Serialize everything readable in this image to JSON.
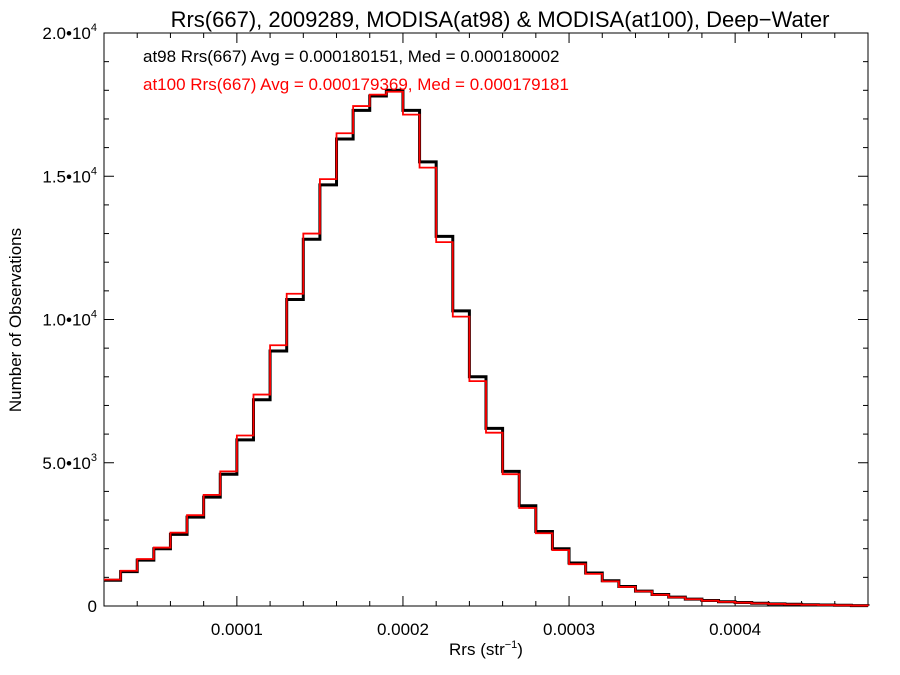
{
  "chart_data": {
    "type": "histogram",
    "title": "Rrs(667), 2009289, MODISA(at98) & MODISA(at100), Deep−Water",
    "xlabel": "Rrs (str",
    "xlabel_sup": "−1",
    "xlabel_close": ")",
    "ylabel": "Number of Observations",
    "xlim": [
      2e-05,
      0.00048
    ],
    "ylim": [
      0,
      20000
    ],
    "x_ticks": [
      {
        "value": 0.0001,
        "label": "0.0001"
      },
      {
        "value": 0.0002,
        "label": "0.0002"
      },
      {
        "value": 0.0003,
        "label": "0.0003"
      },
      {
        "value": 0.0004,
        "label": "0.0004"
      }
    ],
    "y_ticks": [
      {
        "value": 0,
        "label": "0",
        "sup": ""
      },
      {
        "value": 5000,
        "label": "5.0•10",
        "sup": "3"
      },
      {
        "value": 10000,
        "label": "1.0•10",
        "sup": "4"
      },
      {
        "value": 15000,
        "label": "1.5•10",
        "sup": "4"
      },
      {
        "value": 20000,
        "label": "2.0•10",
        "sup": "4"
      }
    ],
    "legend": [
      {
        "text": "at98 Rrs(667) Avg = 0.000180151, Med = 0.000180002",
        "color": "#000000"
      },
      {
        "text": "at100 Rrs(667) Avg = 0.000179369, Med = 0.000179181",
        "color": "#ff0000"
      }
    ],
    "series": [
      {
        "name": "at98",
        "color": "#000000",
        "x": [
          2e-05,
          3e-05,
          4e-05,
          5e-05,
          6e-05,
          7e-05,
          8e-05,
          9e-05,
          0.0001,
          0.00011,
          0.00012,
          0.00013,
          0.00014,
          0.00015,
          0.00016,
          0.00017,
          0.00018,
          0.00019,
          0.0002,
          0.00021,
          0.00022,
          0.00023,
          0.00024,
          0.00025,
          0.00026,
          0.00027,
          0.00028,
          0.00029,
          0.0003,
          0.00031,
          0.00032,
          0.00033,
          0.00034,
          0.00035,
          0.00036,
          0.00037,
          0.00038,
          0.00039,
          0.0004,
          0.00041,
          0.00042,
          0.00043,
          0.00044,
          0.00045,
          0.00046,
          0.00047,
          0.00048
        ],
        "y": [
          900,
          1200,
          1600,
          2000,
          2500,
          3100,
          3800,
          4600,
          5800,
          7200,
          8900,
          10700,
          12800,
          14700,
          16300,
          17300,
          17800,
          18000,
          17300,
          15500,
          12900,
          10300,
          8000,
          6200,
          4700,
          3500,
          2600,
          2000,
          1500,
          1150,
          880,
          680,
          520,
          400,
          310,
          240,
          190,
          150,
          120,
          95,
          75,
          60,
          45,
          35,
          25,
          15,
          10
        ]
      },
      {
        "name": "at100",
        "color": "#ff0000",
        "x": [
          2e-05,
          3e-05,
          4e-05,
          5e-05,
          6e-05,
          7e-05,
          8e-05,
          9e-05,
          0.0001,
          0.00011,
          0.00012,
          0.00013,
          0.00014,
          0.00015,
          0.00016,
          0.00017,
          0.00018,
          0.00019,
          0.0002,
          0.00021,
          0.00022,
          0.00023,
          0.00024,
          0.00025,
          0.00026,
          0.00027,
          0.00028,
          0.00029,
          0.0003,
          0.00031,
          0.00032,
          0.00033,
          0.00034,
          0.00035,
          0.00036,
          0.00037,
          0.00038,
          0.00039,
          0.0004,
          0.00041,
          0.00042,
          0.00043,
          0.00044,
          0.00045,
          0.00046,
          0.00047,
          0.00048
        ],
        "y": [
          920,
          1230,
          1640,
          2040,
          2560,
          3170,
          3880,
          4700,
          5950,
          7380,
          9100,
          10900,
          13000,
          14900,
          16500,
          17450,
          17850,
          17950,
          17150,
          15300,
          12700,
          10100,
          7850,
          6050,
          4600,
          3420,
          2540,
          1950,
          1460,
          1120,
          860,
          665,
          510,
          390,
          300,
          235,
          185,
          145,
          115,
          92,
          72,
          58,
          44,
          34,
          24,
          15,
          10
        ]
      }
    ]
  }
}
